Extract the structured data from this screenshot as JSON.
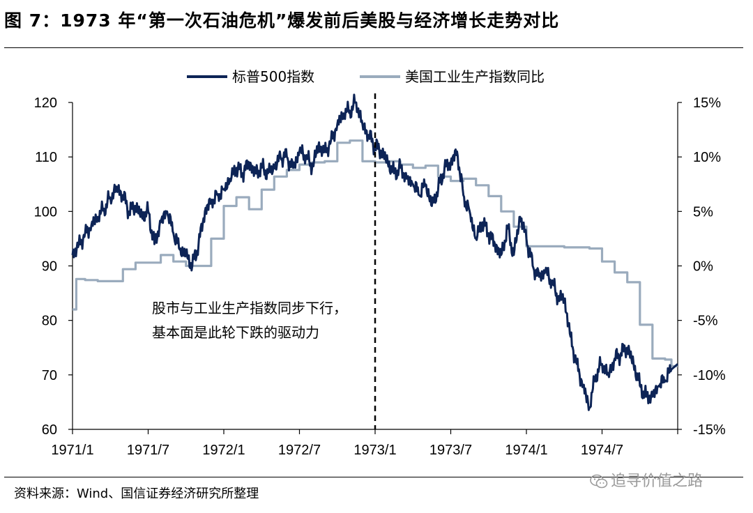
{
  "figure": {
    "title": "图 7：1973 年“第一次石油危机”爆发前后美股与经济增长走势对比",
    "source": "资料来源：Wind、国信证券经济研究所整理",
    "watermark": "追寻价值之路"
  },
  "colors": {
    "sp500": "#0d2456",
    "industrial": "#9aabbd",
    "axis": "#000000"
  },
  "chart_data": {
    "type": "line",
    "xlabel": "",
    "ylabel_left": "",
    "ylabel_right": "",
    "x_tick_labels": [
      "1971/1",
      "1971/7",
      "1972/1",
      "1972/7",
      "1973/1",
      "1973/7",
      "1974/1",
      "1974/7"
    ],
    "x_range": [
      "1971/1",
      "1974/12"
    ],
    "ylim_left": [
      60,
      120
    ],
    "y_left_ticks": [
      "120",
      "110",
      "100",
      "90",
      "80",
      "70",
      "60"
    ],
    "ylim_right": [
      -15,
      15
    ],
    "y_right_ticks": [
      "15%",
      "10%",
      "5%",
      "0%",
      "-5%",
      "-10%",
      "-15%"
    ],
    "legend_position": "top-center",
    "grid": false,
    "vertical_marker": "1973/1",
    "annotation": [
      "股市与工业生产指数同步下行，",
      "基本面是此轮下跌的驱动力"
    ],
    "series": [
      {
        "name": "标普500指数",
        "axis": "left",
        "x_month_offset": [
          0,
          0.5,
          1,
          1.5,
          2,
          2.5,
          3,
          3.5,
          4,
          4.5,
          5,
          5.5,
          6,
          6.5,
          7,
          7.5,
          8,
          8.5,
          9,
          9.5,
          10,
          10.5,
          11,
          11.5,
          12,
          12.5,
          13,
          13.5,
          14,
          14.5,
          15,
          15.5,
          16,
          16.5,
          17,
          17.5,
          18,
          18.5,
          19,
          19.5,
          20,
          20.5,
          21,
          21.5,
          22,
          22.5,
          23,
          23.5,
          24,
          24.5,
          25,
          25.5,
          26,
          26.5,
          27,
          27.5,
          28,
          28.5,
          29,
          29.5,
          30,
          30.5,
          31,
          31.5,
          32,
          32.5,
          33,
          33.5,
          34,
          34.5,
          35,
          35.5,
          36,
          36.5,
          37,
          37.5,
          38,
          38.5,
          39,
          39.5,
          40,
          40.5,
          41,
          41.5,
          42,
          42.5,
          43,
          43.5,
          44,
          44.5,
          45,
          45.5,
          46,
          46.5,
          47,
          47.5
        ],
        "values": [
          92,
          94,
          96,
          97.5,
          99,
          100.5,
          102.5,
          104.5,
          103,
          100,
          101,
          99,
          100,
          94,
          98,
          100,
          96,
          93,
          92,
          90,
          94,
          100,
          102,
          103,
          104,
          106,
          108,
          107,
          109,
          107,
          108,
          107,
          108,
          110,
          110,
          108,
          111,
          110,
          108,
          112,
          111,
          113,
          116,
          118,
          118.5,
          120,
          116,
          114,
          112,
          111,
          109,
          107,
          108,
          106,
          105,
          103,
          105,
          101,
          104,
          108,
          109,
          111,
          103,
          100,
          95,
          98,
          96,
          94,
          92,
          97,
          92,
          99,
          95,
          90,
          88,
          89,
          87,
          84,
          84,
          77,
          72,
          68,
          64,
          70,
          72,
          70,
          73,
          74,
          75,
          72,
          68,
          66,
          66,
          68,
          69,
          71
        ]
      },
      {
        "name": "美国工业生产指数同比",
        "axis": "right",
        "x_month_offset": [
          0,
          0.3,
          1,
          2,
          3,
          4,
          5,
          6,
          7,
          8,
          9,
          10,
          11,
          12,
          13,
          14,
          15,
          16,
          17,
          18,
          19,
          20,
          21,
          22,
          23,
          24,
          25,
          26,
          27,
          28,
          29,
          30,
          31,
          32,
          33,
          34,
          35,
          36,
          37,
          38,
          39,
          40,
          41,
          42,
          43,
          44,
          45,
          46,
          47,
          47.5
        ],
        "values": [
          -4,
          -1.2,
          -1.3,
          -1.4,
          -1.4,
          -0.3,
          0.3,
          0.3,
          1,
          0.4,
          0,
          0,
          2.5,
          5.5,
          6.3,
          5.2,
          7,
          8.2,
          8.8,
          9.3,
          9.5,
          9.6,
          11.3,
          11.5,
          9.6,
          9.5,
          9.6,
          9.3,
          9,
          9.2,
          8.2,
          7.8,
          8,
          7.4,
          6.4,
          5,
          3.6,
          1.8,
          1.8,
          1.8,
          1.7,
          1.7,
          1.6,
          0.4,
          -0.6,
          -1.5,
          -5.4,
          -8.5,
          -8.6,
          -9.2
        ]
      }
    ]
  }
}
